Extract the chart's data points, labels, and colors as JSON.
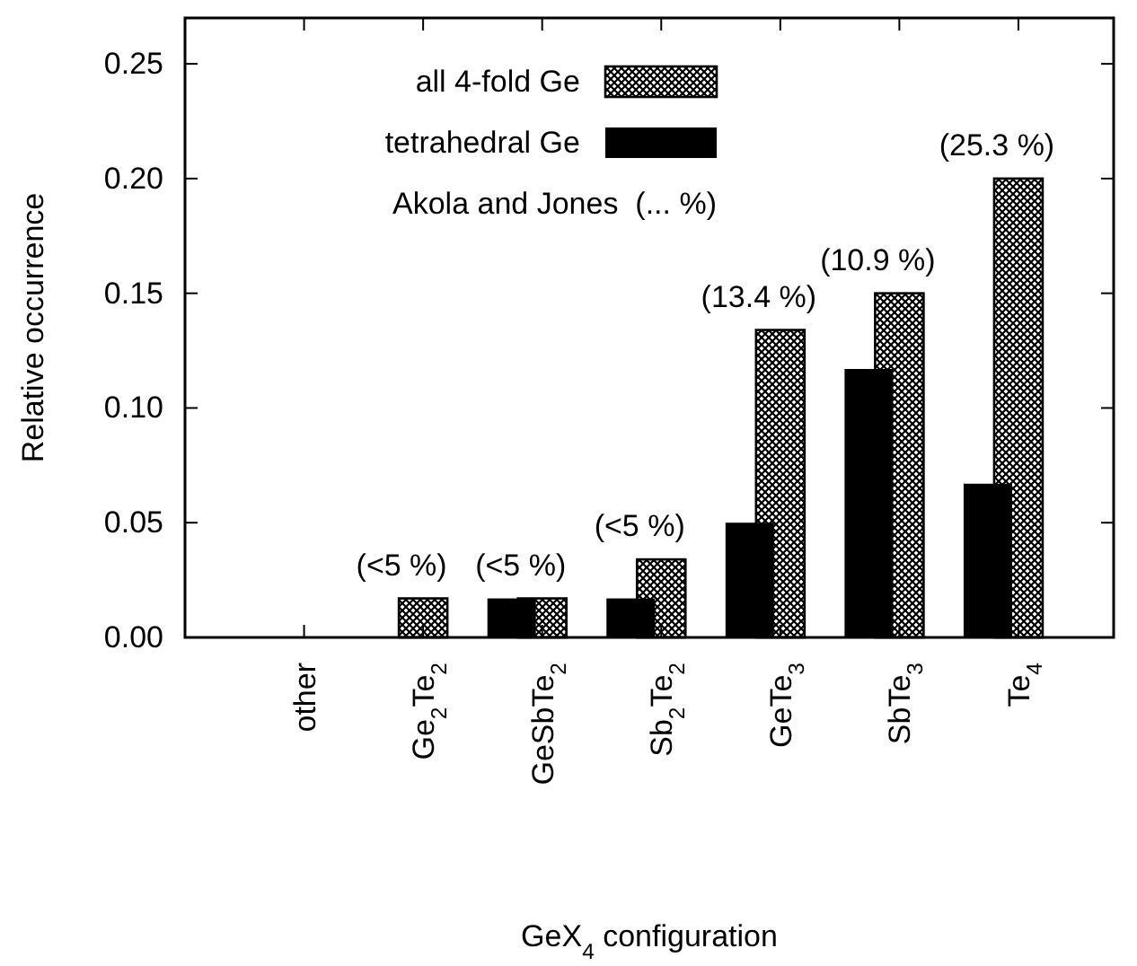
{
  "chart_data": {
    "type": "bar",
    "xlabel": "GeX$_{4}$ configuration",
    "ylabel": "Relative occurrence",
    "categories": [
      "other",
      "Ge$_{2}$Te$_{2}$",
      "GeSbTe$_{2}$",
      "Sb$_{2}$Te$_{2}$",
      "GeTe$_{3}$",
      "SbTe$_{3}$",
      "Te$_{4}$"
    ],
    "series": [
      {
        "name": "all 4-fold Ge",
        "color": "#000000",
        "values": [
          0,
          0.017,
          0.017,
          0.034,
          0.134,
          0.15,
          0.2
        ]
      },
      {
        "name": "tetrahedral Ge",
        "color": "#000000",
        "values": [
          0,
          0,
          0.017,
          0.017,
          0.05,
          0.117,
          0.067
        ]
      }
    ],
    "ylim": [
      0,
      0.27
    ],
    "yticks": [
      {
        "value": 0,
        "label": "0.00"
      },
      {
        "value": 0.05,
        "label": "0.05"
      },
      {
        "value": 0.1,
        "label": "0.10"
      },
      {
        "value": 0.15,
        "label": "0.15"
      },
      {
        "value": 0.2,
        "label": "0.20"
      },
      {
        "value": 0.25,
        "label": "0.25"
      }
    ],
    "legend": "top left",
    "grid": false,
    "annotations": [
      "Akola and Jones  (... %)",
      {
        "text": "(<5 %)",
        "x": "Ge$_{2}$Te$_{2}$",
        "y": 0.017
      },
      {
        "text": "(<5 %)",
        "x": "GeSbTe$_{2}$",
        "y": 0.017
      },
      {
        "text": "(<5 %)",
        "x": "Sb$_{2}$Te$_{2}$",
        "y": 0.034
      },
      {
        "text": "(13.4 %)",
        "x": "GeTe$_{3}$",
        "y": 0.134
      },
      {
        "text": "(10.9 %)",
        "x": "SbTe$_{3}$",
        "y": 0.15
      },
      {
        "text": "(25.3 %)",
        "x": "Te$_{4}$",
        "y": 0.2
      }
    ]
  }
}
